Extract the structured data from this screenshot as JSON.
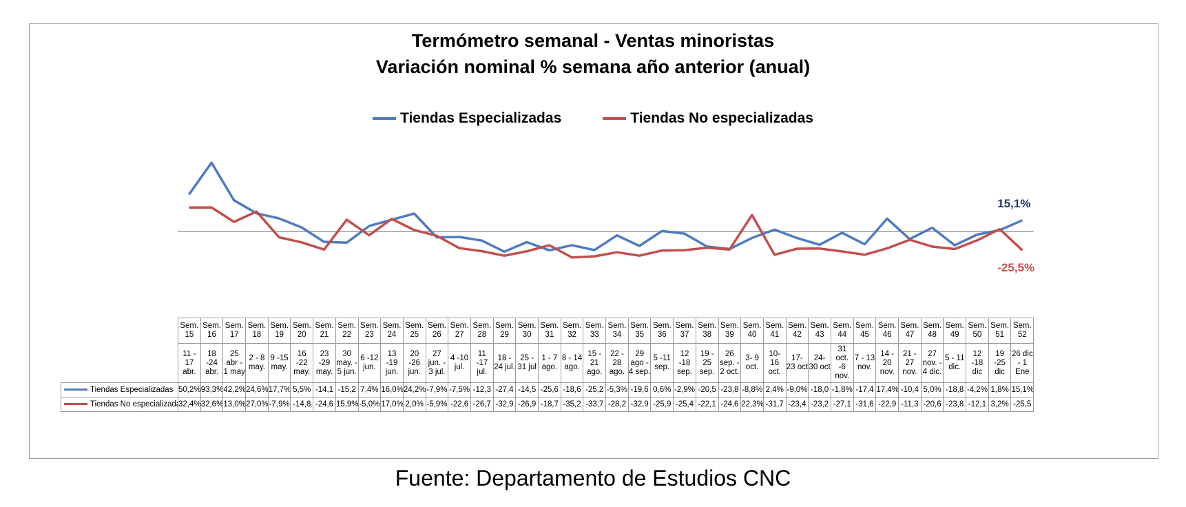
{
  "chart_data": {
    "type": "line",
    "title": "Termómetro semanal - Ventas minoristas",
    "subtitle": "Variación nominal % semana año anterior (anual)",
    "categories": [
      {
        "week": "Sem. 15",
        "range": "11 - 17 abr."
      },
      {
        "week": "Sem. 16",
        "range": "18 -24 abr."
      },
      {
        "week": "Sem. 17",
        "range": "25 abr - 1 may"
      },
      {
        "week": "Sem. 18",
        "range": "2 - 8 may."
      },
      {
        "week": "Sem. 19",
        "range": "9 -15 may."
      },
      {
        "week": "Sem. 20",
        "range": "16 -22 may."
      },
      {
        "week": "Sem. 21",
        "range": "23 -29 may."
      },
      {
        "week": "Sem. 22",
        "range": "30 may. - 5 jun."
      },
      {
        "week": "Sem. 23",
        "range": "6 -12 jun."
      },
      {
        "week": "Sem. 24",
        "range": "13 -19 jun."
      },
      {
        "week": "Sem. 25",
        "range": "20 -26 jun."
      },
      {
        "week": "Sem. 26",
        "range": "27 jun. - 3 jul."
      },
      {
        "week": "Sem. 27",
        "range": "4 -10 jul."
      },
      {
        "week": "Sem. 28",
        "range": "11 -17 jul."
      },
      {
        "week": "Sem. 29",
        "range": "18 - 24 jul."
      },
      {
        "week": "Sem. 30",
        "range": "25 - 31 jul"
      },
      {
        "week": "Sem. 31",
        "range": "1 - 7 ago."
      },
      {
        "week": "Sem. 32",
        "range": "8 - 14 ago."
      },
      {
        "week": "Sem. 33",
        "range": "15 - 21 ago."
      },
      {
        "week": "Sem. 34",
        "range": "22 - 28 ago."
      },
      {
        "week": "Sem. 35",
        "range": "29 ago - 4 sep."
      },
      {
        "week": "Sem. 36",
        "range": "5 -11 sep."
      },
      {
        "week": "Sem. 37",
        "range": "12 -18 sep."
      },
      {
        "week": "Sem. 38",
        "range": "19 - 25 sep."
      },
      {
        "week": "Sem. 39",
        "range": "26 sep. - 2 oct."
      },
      {
        "week": "Sem. 40",
        "range": "3- 9 oct."
      },
      {
        "week": "Sem. 41",
        "range": "10- 16 oct."
      },
      {
        "week": "Sem. 42",
        "range": "17- 23 oct"
      },
      {
        "week": "Sem. 43",
        "range": "24- 30 oct"
      },
      {
        "week": "Sem. 44",
        "range": "31 oct. -6 nov."
      },
      {
        "week": "Sem. 45",
        "range": "7 - 13 nov."
      },
      {
        "week": "Sem. 46",
        "range": "14 - 20 nov."
      },
      {
        "week": "Sem. 47",
        "range": "21 - 27 nov."
      },
      {
        "week": "Sem. 48",
        "range": "27 nov. - 4 dic."
      },
      {
        "week": "Sem. 49",
        "range": "5 - 11 dic."
      },
      {
        "week": "Sem. 50",
        "range": "12 -18 dic"
      },
      {
        "week": "Sem. 51",
        "range": "19 -25 dic"
      },
      {
        "week": "Sem. 52",
        "range": "26 dic - 1 Ene"
      }
    ],
    "series": [
      {
        "name": "Tiendas Especializadas",
        "color": "#4f7bbf",
        "values": [
          50.2,
          93.3,
          42.2,
          24.6,
          17.7,
          5.5,
          -14.1,
          -15.2,
          7.4,
          16.0,
          24.2,
          -7.9,
          -7.5,
          -12.3,
          -27.4,
          -14.5,
          -25.6,
          -18.6,
          -25.2,
          -5.3,
          -19.6,
          0.6,
          -2.9,
          -20.5,
          -23.8,
          -8.8,
          2.4,
          -9.0,
          -18.0,
          -1.8,
          -17.4,
          17.4,
          -10.4,
          5.0,
          -18.8,
          -4.2,
          1.8,
          15.1
        ],
        "labels": [
          "50,2%",
          "93,3%",
          "42,2%",
          "24,6%",
          "17,7%",
          "5,5%",
          "-14,1",
          "-15,2",
          "7,4%",
          "16,0%",
          "24,2%",
          "-7,9%",
          "-7,5%",
          "-12,3",
          "-27,4",
          "-14,5",
          "-25,6",
          "-18,6",
          "-25,2",
          "-5,3%",
          "-19,6",
          "0,6%",
          "-2,9%",
          "-20,5",
          "-23,8",
          "-8,8%",
          "2,4%",
          "-9,0%",
          "-18,0",
          "-1,8%",
          "-17,4",
          "17,4%",
          "-10,4",
          "5,0%",
          "-18,8",
          "-4,2%",
          "1,8%",
          "15,1%"
        ],
        "end_label": "15,1%"
      },
      {
        "name": "Tiendas No especializadas",
        "color": "#c0504d",
        "values": [
          32.4,
          32.6,
          13.0,
          27.0,
          -7.9,
          -14.8,
          -24.6,
          15.9,
          -5.0,
          17.0,
          2.0,
          -5.9,
          -22.6,
          -26.7,
          -32.9,
          -26.9,
          -18.7,
          -35.2,
          -33.7,
          -28.2,
          -32.9,
          -25.9,
          -25.4,
          -22.1,
          -24.6,
          22.3,
          -31.7,
          -23.4,
          -23.2,
          -27.1,
          -31.6,
          -22.9,
          -11.3,
          -20.6,
          -23.8,
          -12.1,
          3.2,
          -25.5
        ],
        "labels": [
          "32,4%",
          "32,6%",
          "13,0%",
          "27,0%",
          "-7,9%",
          "-14,8",
          "-24,6",
          "15,9%",
          "-5,0%",
          "17,0%",
          "2,0%",
          "-5,9%",
          "-22,6",
          "-26,7",
          "-32,9",
          "-26,9",
          "-18,7",
          "-35,2",
          "-33,7",
          "-28,2",
          "-32,9",
          "-25,9",
          "-25,4",
          "-22,1",
          "-24,6",
          "22,3%",
          "-31,7",
          "-23,4",
          "-23,2",
          "-27,1",
          "-31,6",
          "-22,9",
          "-11,3",
          "-20,6",
          "-23,8",
          "-12,1",
          "3,2%",
          "-25,5"
        ],
        "end_label": "-25,5%"
      }
    ],
    "grid": false,
    "legend_position": "top",
    "xlabel": "",
    "ylabel": ""
  },
  "source": "Fuente: Departamento de Estudios CNC"
}
